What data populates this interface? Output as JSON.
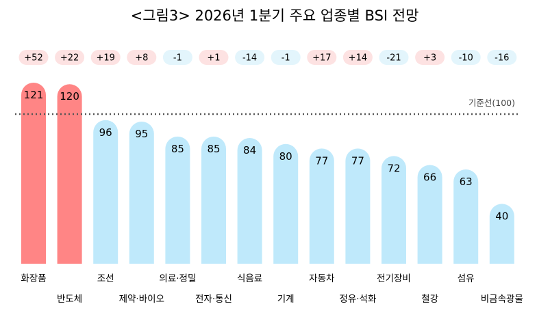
{
  "chart_data": {
    "type": "bar",
    "title": "<그림3> 2026년 1분기 주요 업종별 BSI 전망",
    "categories": [
      "화장품",
      "반도체",
      "조선",
      "제약·바이오",
      "의료·정밀",
      "전자·통신",
      "식음료",
      "기계",
      "자동차",
      "정유·석화",
      "전기장비",
      "철강",
      "섬유",
      "비금속광물"
    ],
    "values": [
      121,
      120,
      96,
      95,
      85,
      85,
      84,
      80,
      77,
      77,
      72,
      66,
      63,
      40
    ],
    "changes": [
      "+52",
      "+22",
      "+19",
      "+8",
      "-1",
      "+1",
      "-14",
      "-1",
      "+17",
      "+14",
      "-21",
      "+3",
      "-10",
      "-16"
    ],
    "reference_line": {
      "value": 100,
      "label": "기준선(100)"
    },
    "ylim": [
      0,
      125
    ],
    "xlabel": "",
    "ylabel": "",
    "grid": false,
    "legend": "none",
    "colors": {
      "above_reference": "#ff8585",
      "below_reference": "#bfe9fb",
      "badge_positive": "#fde2e2",
      "badge_negative": "#e3f5fc",
      "reference_line": "#555555"
    }
  }
}
